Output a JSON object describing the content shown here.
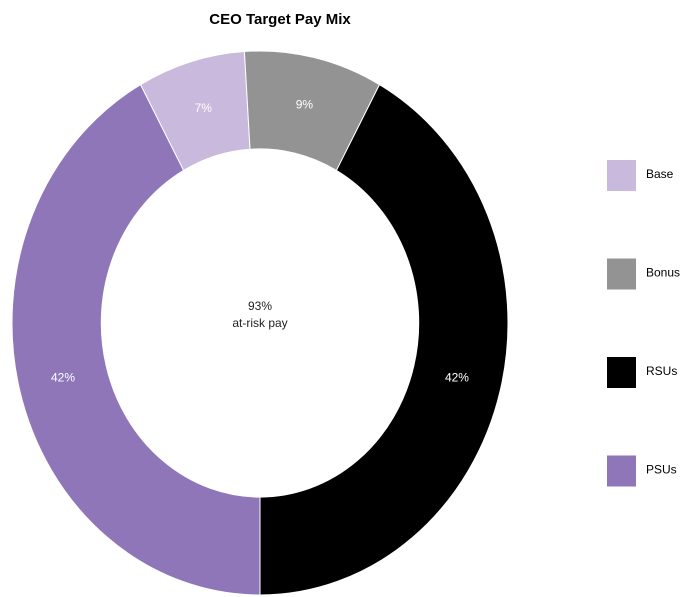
{
  "chart_data": {
    "type": "donut",
    "title": "CEO Target Pay Mix",
    "categories": [
      "Base",
      "Bonus",
      "RSUs",
      "PSUs"
    ],
    "values": [
      7,
      9,
      42,
      42
    ],
    "value_labels": [
      "7%",
      "9%",
      "42%",
      "42%"
    ],
    "colors": [
      "#c9b9dc",
      "#939393",
      "#000000",
      "#8e76b8"
    ],
    "annotations": [
      "93%",
      "at-risk pay"
    ],
    "legend": "right"
  }
}
